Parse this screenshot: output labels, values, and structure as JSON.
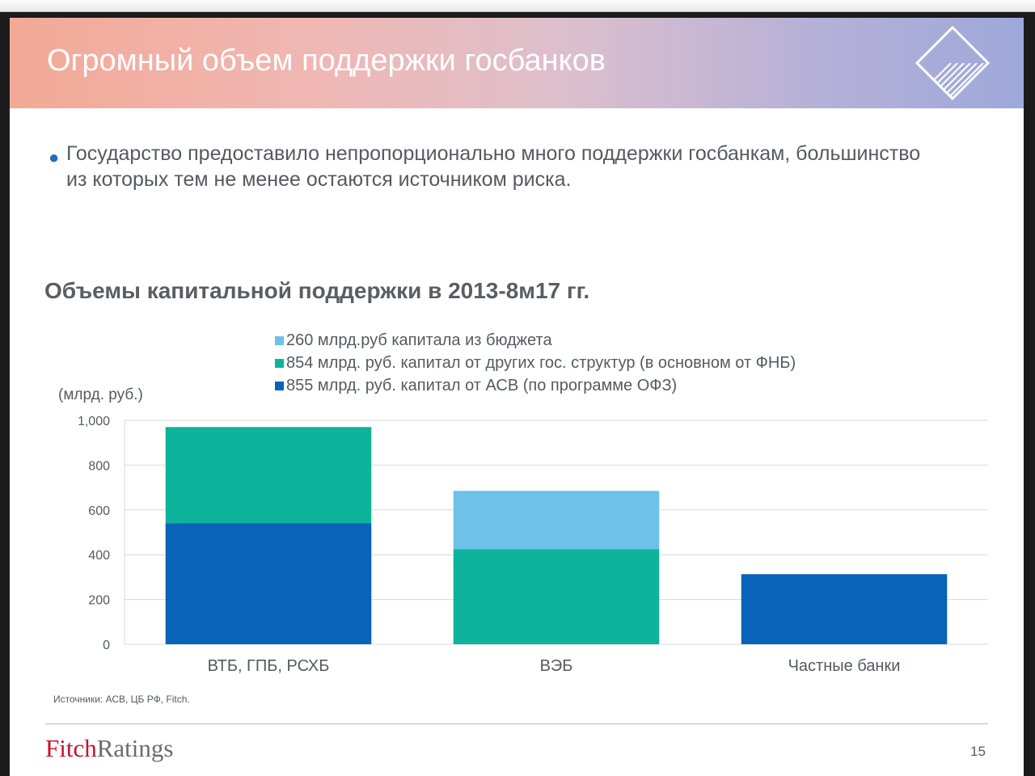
{
  "slide": {
    "title": "Огромный объем поддержки госбанков",
    "bullet": "Государство предоставило непропорционально много поддержки госбанкам, большинство из которых тем не менее остаются источником риска.",
    "bullet_symbol": "●",
    "source": "Источники: АСВ, ЦБ РФ, Fitch.",
    "page_number": "15"
  },
  "brand": {
    "part1": "Fitch",
    "part2": "Ratings"
  },
  "colors": {
    "budget": "#6ec1e8",
    "other_gov": "#0db39b",
    "asv": "#0863b9",
    "brand_red": "#c8102e",
    "bullet": "#1f6fb8",
    "title_text": "#595e63"
  },
  "chart_data": {
    "type": "bar",
    "stacked": true,
    "title": "Объемы капитальной поддержки в 2013-8м17 гг.",
    "ylabel": "(млрд. руб.)",
    "xlabel": "",
    "categories": [
      "ВТБ, ГПБ, РСХБ",
      "ВЭБ",
      "Частные банки"
    ],
    "ylim": [
      0,
      1000
    ],
    "yticks": [
      0,
      200,
      400,
      600,
      800,
      1000
    ],
    "ytick_labels": [
      "0",
      "200",
      "400",
      "600",
      "800",
      "1,000"
    ],
    "series": [
      {
        "name": "855 млрд. руб. капитал от АСВ (по программе ОФЗ)",
        "values": [
          541,
          0,
          313
        ]
      },
      {
        "name": "854 млрд. руб. капитал от других гос. структур (в основном от ФНБ)",
        "values": [
          429,
          425,
          0
        ]
      },
      {
        "name": "260 млрд.руб капитала из бюджета",
        "values": [
          0,
          260,
          0
        ]
      }
    ],
    "legend_order": [
      2,
      1,
      0
    ],
    "legend_position": "top",
    "grid": true
  }
}
